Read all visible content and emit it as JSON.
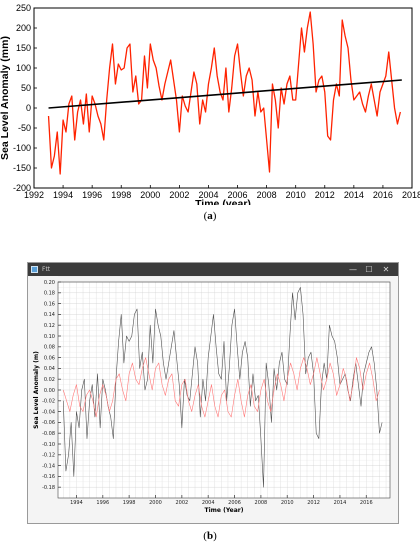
{
  "chart_data": [
    {
      "type": "line",
      "panel_label": "(a)",
      "xlabel": "Time (year)",
      "ylabel": "Sea Level Anomaly (mm)",
      "xlim": [
        1992,
        2018
      ],
      "ylim": [
        -200,
        250
      ],
      "x_ticks": [
        1992,
        1994,
        1996,
        1998,
        2000,
        2002,
        2004,
        2006,
        2008,
        2010,
        2012,
        2014,
        2016,
        2018
      ],
      "y_ticks": [
        -200,
        -150,
        -100,
        -50,
        0,
        50,
        100,
        150,
        200,
        250
      ],
      "grid": false,
      "series": [
        {
          "color": "#ff2200",
          "x": [
            1993.0,
            1993.2,
            1993.4,
            1993.6,
            1993.8,
            1994.0,
            1994.2,
            1994.4,
            1994.6,
            1994.8,
            1995.0,
            1995.2,
            1995.4,
            1995.6,
            1995.8,
            1996.0,
            1996.2,
            1996.4,
            1996.6,
            1996.8,
            1997.0,
            1997.2,
            1997.4,
            1997.6,
            1997.8,
            1998.0,
            1998.2,
            1998.4,
            1998.6,
            1998.8,
            1999.0,
            1999.2,
            1999.4,
            1999.6,
            1999.8,
            2000.0,
            2000.2,
            2000.4,
            2000.6,
            2000.8,
            2001.0,
            2001.2,
            2001.4,
            2001.6,
            2001.8,
            2002.0,
            2002.2,
            2002.4,
            2002.6,
            2002.8,
            2003.0,
            2003.2,
            2003.4,
            2003.6,
            2003.8,
            2004.0,
            2004.2,
            2004.4,
            2004.6,
            2004.8,
            2005.0,
            2005.2,
            2005.4,
            2005.6,
            2005.8,
            2006.0,
            2006.2,
            2006.4,
            2006.6,
            2006.8,
            2007.0,
            2007.2,
            2007.4,
            2007.6,
            2007.8,
            2008.0,
            2008.2,
            2008.4,
            2008.6,
            2008.8,
            2009.0,
            2009.2,
            2009.4,
            2009.6,
            2009.8,
            2010.0,
            2010.2,
            2010.4,
            2010.6,
            2010.8,
            2011.0,
            2011.2,
            2011.4,
            2011.6,
            2011.8,
            2012.0,
            2012.2,
            2012.4,
            2012.6,
            2012.8,
            2013.0,
            2013.2,
            2013.4,
            2013.6,
            2013.8,
            2014.0,
            2014.2,
            2014.4,
            2014.6,
            2014.8,
            2015.0,
            2015.2,
            2015.4,
            2015.6,
            2015.8,
            2016.0,
            2016.2,
            2016.4,
            2016.6,
            2016.8,
            2017.0,
            2017.2
          ],
          "values": [
            -20,
            -150,
            -120,
            -60,
            -165,
            -30,
            -60,
            10,
            30,
            -80,
            -10,
            20,
            -40,
            35,
            -60,
            30,
            10,
            -20,
            -40,
            -80,
            20,
            100,
            160,
            60,
            110,
            95,
            100,
            150,
            160,
            40,
            80,
            10,
            20,
            130,
            50,
            160,
            120,
            100,
            55,
            20,
            60,
            90,
            120,
            70,
            20,
            -60,
            30,
            5,
            -10,
            40,
            90,
            60,
            -40,
            20,
            -10,
            60,
            100,
            150,
            80,
            40,
            20,
            100,
            -10,
            50,
            130,
            160,
            90,
            30,
            80,
            100,
            70,
            -20,
            40,
            -10,
            0,
            -80,
            -160,
            60,
            20,
            -50,
            50,
            10,
            60,
            80,
            20,
            20,
            110,
            200,
            140,
            200,
            240,
            160,
            40,
            70,
            80,
            40,
            -70,
            -80,
            20,
            60,
            30,
            220,
            180,
            150,
            70,
            20,
            30,
            40,
            10,
            -10,
            30,
            60,
            20,
            -20,
            40,
            60,
            80,
            140,
            70,
            0,
            -40,
            -10
          ]
        },
        {
          "color": "#000000",
          "x": [
            1993,
            2017.3
          ],
          "values": [
            0,
            70
          ]
        }
      ]
    },
    {
      "type": "line",
      "panel_label": "(b)",
      "window_title": "Ftt",
      "window_controls": [
        "—",
        "☐",
        "✕"
      ],
      "xlabel": "Time (Year)",
      "ylabel": "Sea Level Anomaly (m)",
      "xlim": [
        1992.6,
        2017.8
      ],
      "ylim": [
        -0.2,
        0.2
      ],
      "x_ticks": [
        1994,
        1996,
        1998,
        2000,
        2002,
        2004,
        2006,
        2008,
        2010,
        2012,
        2014,
        2016
      ],
      "y_ticks": [
        -0.18,
        -0.16,
        -0.14,
        -0.12,
        -0.1,
        -0.08,
        -0.06,
        -0.04,
        -0.02,
        0.0,
        0.02,
        0.04,
        0.06,
        0.08,
        0.1,
        0.12,
        0.14,
        0.16,
        0.18,
        0.2
      ],
      "y_tick_labels": [
        "-0.18",
        "-0.16",
        "-0.14",
        "-0.12",
        "-0.10",
        "-0.08",
        "-0.06",
        "-0.04",
        "-0.02",
        "0.00",
        "0.02",
        "0.04",
        "0.06",
        "0.08",
        "0.10",
        "0.12",
        "0.14",
        "0.16",
        "0.18",
        "0.20"
      ],
      "grid": true,
      "series": [
        {
          "color": "#505050",
          "x": [
            1993.0,
            1993.2,
            1993.4,
            1993.6,
            1993.8,
            1994.0,
            1994.2,
            1994.4,
            1994.6,
            1994.8,
            1995.0,
            1995.2,
            1995.4,
            1995.6,
            1995.8,
            1996.0,
            1996.2,
            1996.4,
            1996.6,
            1996.8,
            1997.0,
            1997.2,
            1997.4,
            1997.6,
            1997.8,
            1998.0,
            1998.2,
            1998.4,
            1998.6,
            1998.8,
            1999.0,
            1999.2,
            1999.4,
            1999.6,
            1999.8,
            2000.0,
            2000.2,
            2000.4,
            2000.6,
            2000.8,
            2001.0,
            2001.2,
            2001.4,
            2001.6,
            2001.8,
            2002.0,
            2002.2,
            2002.4,
            2002.6,
            2002.8,
            2003.0,
            2003.2,
            2003.4,
            2003.6,
            2003.8,
            2004.0,
            2004.2,
            2004.4,
            2004.6,
            2004.8,
            2005.0,
            2005.2,
            2005.4,
            2005.6,
            2005.8,
            2006.0,
            2006.2,
            2006.4,
            2006.6,
            2006.8,
            2007.0,
            2007.2,
            2007.4,
            2007.6,
            2007.8,
            2008.0,
            2008.2,
            2008.4,
            2008.6,
            2008.8,
            2009.0,
            2009.2,
            2009.4,
            2009.6,
            2009.8,
            2010.0,
            2010.2,
            2010.4,
            2010.6,
            2010.8,
            2011.0,
            2011.2,
            2011.4,
            2011.6,
            2011.8,
            2012.0,
            2012.2,
            2012.4,
            2012.6,
            2012.8,
            2013.0,
            2013.2,
            2013.4,
            2013.6,
            2013.8,
            2014.0,
            2014.2,
            2014.4,
            2014.6,
            2014.8,
            2015.0,
            2015.2,
            2015.4,
            2015.6,
            2015.8,
            2016.0,
            2016.2,
            2016.4,
            2016.6,
            2016.8,
            2017.0,
            2017.2
          ],
          "values": [
            -0.02,
            -0.15,
            -0.12,
            -0.06,
            -0.16,
            -0.04,
            -0.07,
            0.0,
            0.02,
            -0.09,
            -0.02,
            0.01,
            -0.05,
            0.03,
            -0.07,
            0.02,
            0.0,
            -0.03,
            -0.05,
            -0.09,
            0.02,
            0.09,
            0.14,
            0.05,
            0.1,
            0.09,
            0.1,
            0.14,
            0.15,
            0.04,
            0.07,
            0.0,
            0.02,
            0.12,
            0.05,
            0.15,
            0.12,
            0.1,
            0.05,
            0.02,
            0.05,
            0.08,
            0.11,
            0.06,
            0.01,
            -0.07,
            0.02,
            -0.01,
            -0.02,
            0.03,
            0.08,
            0.05,
            -0.05,
            0.02,
            -0.02,
            0.06,
            0.1,
            0.14,
            0.08,
            0.03,
            0.02,
            0.09,
            -0.02,
            0.04,
            0.12,
            0.15,
            0.08,
            0.02,
            0.07,
            0.09,
            0.06,
            -0.03,
            0.03,
            -0.02,
            -0.01,
            -0.09,
            -0.18,
            0.05,
            0.01,
            -0.06,
            0.04,
            0.0,
            0.05,
            0.07,
            0.02,
            0.01,
            0.1,
            0.18,
            0.13,
            0.18,
            0.19,
            0.14,
            0.03,
            0.06,
            0.07,
            0.03,
            -0.08,
            -0.09,
            0.01,
            0.05,
            0.02,
            0.12,
            0.1,
            0.09,
            0.06,
            0.01,
            0.02,
            0.03,
            0.0,
            -0.02,
            0.02,
            0.05,
            0.01,
            -0.03,
            0.03,
            0.05,
            0.07,
            0.08,
            0.05,
            0.0,
            -0.08,
            -0.06
          ]
        },
        {
          "color": "#ff7777",
          "x": [
            1993.0,
            1993.25,
            1993.5,
            1993.75,
            1994.0,
            1994.25,
            1994.5,
            1994.75,
            1995.0,
            1995.25,
            1995.5,
            1995.75,
            1996.0,
            1996.25,
            1996.5,
            1996.75,
            1997.0,
            1997.25,
            1997.5,
            1997.75,
            1998.0,
            1998.25,
            1998.5,
            1998.75,
            1999.0,
            1999.25,
            1999.5,
            1999.75,
            2000.0,
            2000.25,
            2000.5,
            2000.75,
            2001.0,
            2001.25,
            2001.5,
            2001.75,
            2002.0,
            2002.25,
            2002.5,
            2002.75,
            2003.0,
            2003.25,
            2003.5,
            2003.75,
            2004.0,
            2004.25,
            2004.5,
            2004.75,
            2005.0,
            2005.25,
            2005.5,
            2005.75,
            2006.0,
            2006.25,
            2006.5,
            2006.75,
            2007.0,
            2007.25,
            2007.5,
            2007.75,
            2008.0,
            2008.25,
            2008.5,
            2008.75,
            2009.0,
            2009.25,
            2009.5,
            2009.75,
            2010.0,
            2010.25,
            2010.5,
            2010.75,
            2011.0,
            2011.25,
            2011.5,
            2011.75,
            2012.0,
            2012.25,
            2012.5,
            2012.75,
            2013.0,
            2013.25,
            2013.5,
            2013.75,
            2014.0,
            2014.25,
            2014.5,
            2014.75,
            2015.0,
            2015.25,
            2015.5,
            2015.75,
            2016.0,
            2016.25,
            2016.5,
            2016.75,
            2017.0
          ],
          "values": [
            0.0,
            -0.02,
            -0.04,
            -0.01,
            0.01,
            -0.03,
            -0.04,
            -0.01,
            0.0,
            -0.02,
            -0.05,
            -0.01,
            0.01,
            -0.01,
            -0.04,
            -0.02,
            0.02,
            0.03,
            0.0,
            -0.02,
            0.03,
            0.05,
            0.02,
            0.01,
            0.04,
            0.06,
            0.03,
            0.0,
            0.04,
            0.05,
            0.01,
            -0.01,
            0.02,
            0.03,
            -0.02,
            -0.03,
            0.01,
            0.02,
            -0.02,
            -0.04,
            -0.01,
            0.01,
            -0.03,
            -0.05,
            -0.02,
            0.01,
            -0.03,
            -0.05,
            -0.01,
            0.0,
            -0.04,
            -0.05,
            -0.01,
            0.02,
            -0.02,
            -0.05,
            -0.01,
            0.01,
            -0.03,
            -0.04,
            0.0,
            0.02,
            -0.02,
            -0.04,
            0.0,
            0.03,
            0.01,
            -0.02,
            0.02,
            0.05,
            0.03,
            0.0,
            0.04,
            0.06,
            0.04,
            0.01,
            0.03,
            0.06,
            0.03,
            0.0,
            0.02,
            0.05,
            0.03,
            -0.01,
            0.01,
            0.04,
            0.02,
            -0.02,
            0.01,
            0.06,
            0.04,
            0.0,
            0.03,
            0.05,
            0.02,
            -0.02,
            0.0
          ]
        }
      ]
    }
  ]
}
